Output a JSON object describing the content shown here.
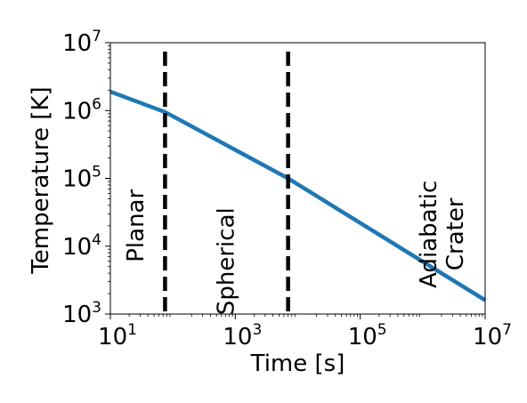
{
  "chart_data": {
    "type": "line",
    "xlabel": "Time [s]",
    "ylabel": "Temperature [K]",
    "xscale": "log",
    "yscale": "log",
    "xlim": [
      10,
      10000000
    ],
    "ylim": [
      1000,
      10000000
    ],
    "xticks": [
      {
        "value": 10,
        "base": "10",
        "exp": "1"
      },
      {
        "value": 1000,
        "base": "10",
        "exp": "3"
      },
      {
        "value": 100000,
        "base": "10",
        "exp": "5"
      },
      {
        "value": 10000000,
        "base": "10",
        "exp": "7"
      }
    ],
    "yticks": [
      {
        "value": 1000,
        "base": "10",
        "exp": "3"
      },
      {
        "value": 10000,
        "base": "10",
        "exp": "4"
      },
      {
        "value": 100000,
        "base": "10",
        "exp": "5"
      },
      {
        "value": 1000000,
        "base": "10",
        "exp": "6"
      },
      {
        "value": 10000000,
        "base": "10",
        "exp": "7"
      }
    ],
    "series": [
      {
        "color": "#1f77b4",
        "x": [
          10,
          75,
          7000,
          10000000
        ],
        "y": [
          1900000,
          950000,
          100000,
          1600
        ]
      }
    ],
    "vlines": [
      {
        "x": 75,
        "style": "dashed",
        "color": "#000000"
      },
      {
        "x": 7000,
        "style": "dashed",
        "color": "#000000"
      }
    ],
    "region_labels": [
      {
        "lines": [
          "Planar"
        ],
        "x": 25,
        "y": 20000
      },
      {
        "lines": [
          "Spherical"
        ],
        "x": 700,
        "y": 6000
      },
      {
        "lines": [
          "Adiabatic",
          "Crater"
        ],
        "x": 2000000,
        "y": 15000
      }
    ],
    "grid": false
  }
}
